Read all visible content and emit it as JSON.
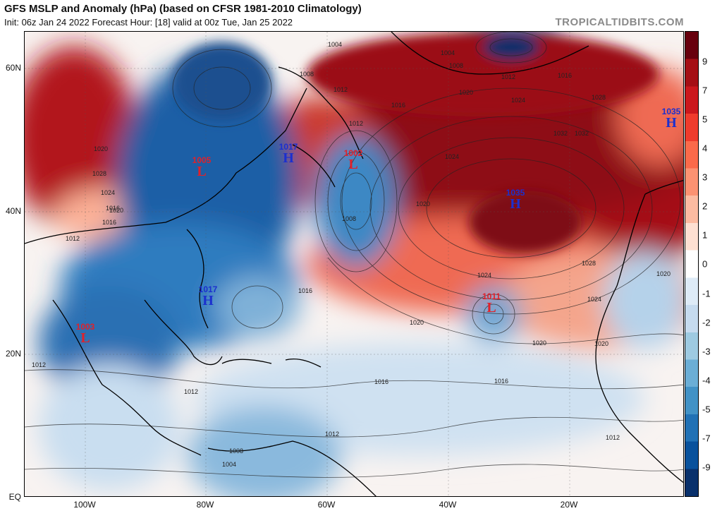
{
  "header": {
    "title": "GFS MSLP and Anomaly (hPa) (based on CFSR 1981-2010 Climatology)",
    "subtitle": "Init: 06z Jan 24 2022   Forecast Hour: [18]   valid at 00z Tue, Jan 25 2022",
    "brand": "TROPICALTIDBITS.COM"
  },
  "axes": {
    "lat": [
      "60N",
      "40N",
      "20N",
      "EQ"
    ],
    "lon": [
      "100W",
      "80W",
      "60W",
      "40W",
      "20W"
    ]
  },
  "colorbar": {
    "labels": [
      "9",
      "7",
      "5",
      "4",
      "3",
      "2",
      "1",
      "0",
      "-1",
      "-2",
      "-3",
      "-4",
      "-5",
      "-7",
      "-9"
    ],
    "colors": [
      "#67000d",
      "#a50f15",
      "#cb181d",
      "#ef3b2c",
      "#fb6a4a",
      "#fc9272",
      "#fcbba1",
      "#fee0d2",
      "#ffffff",
      "#deebf7",
      "#c6dbef",
      "#9ecae1",
      "#6baed6",
      "#4292c6",
      "#2171b5",
      "#08519c",
      "#08306b"
    ]
  },
  "systems": [
    {
      "type": "L",
      "value": "1005"
    },
    {
      "type": "H",
      "value": "1017"
    },
    {
      "type": "L",
      "value": "1002"
    },
    {
      "type": "H",
      "value": "1017"
    },
    {
      "type": "L",
      "value": "1003"
    },
    {
      "type": "H",
      "value": "1035"
    },
    {
      "type": "L",
      "value": "1011"
    },
    {
      "type": "H",
      "value": "1035"
    }
  ],
  "isobar_labels": [
    "1004",
    "1004",
    "1008",
    "1012",
    "1016",
    "1020",
    "1024",
    "1028",
    "1032",
    "1024",
    "1020",
    "1016",
    "1012",
    "1008",
    "1020",
    "1016",
    "1012",
    "1016",
    "1020",
    "1024",
    "1028",
    "1024",
    "1020",
    "1016",
    "1012",
    "1012",
    "1016",
    "1020",
    "1012",
    "1008",
    "1004",
    "1012",
    "1016",
    "1020",
    "1024",
    "1028",
    "1032",
    "1008",
    "1012",
    "1020"
  ]
}
